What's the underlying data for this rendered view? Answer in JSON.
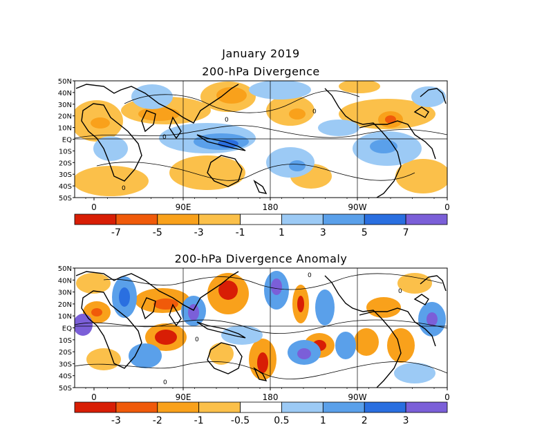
{
  "header": {
    "month": "January 2019",
    "panel1_title": "200-hPa Divergence",
    "panel2_title": "200-hPa Divergence Anomaly"
  },
  "axes": {
    "lat_labels": [
      "50N",
      "40N",
      "30N",
      "20N",
      "10N",
      "EQ",
      "10S",
      "20S",
      "30S",
      "40S",
      "50S"
    ],
    "lon_labels": [
      "0",
      "90E",
      "180",
      "90W",
      "0"
    ]
  },
  "colorbar1": {
    "labels": [
      "-7",
      "-5",
      "-3",
      "-1",
      "1",
      "3",
      "5",
      "7"
    ],
    "colors": [
      "#d81e05",
      "#f05a0a",
      "#f9a11b",
      "#fbc04a",
      "#ffffff",
      "#9ccaf5",
      "#5aa0ea",
      "#2a6fe0",
      "#7b5fd8"
    ]
  },
  "colorbar2": {
    "labels": [
      "-3",
      "-2",
      "-1",
      "-0.5",
      "0.5",
      "1",
      "2",
      "3"
    ],
    "colors": [
      "#d81e05",
      "#f05a0a",
      "#f9a11b",
      "#fbc04a",
      "#ffffff",
      "#9ccaf5",
      "#5aa0ea",
      "#2a6fe0",
      "#7b5fd8"
    ]
  },
  "contour_labels": {
    "panel1": [
      "0",
      "0",
      "0",
      "0"
    ],
    "panel2": [
      "0",
      "0",
      "0",
      "0"
    ]
  },
  "colors": {
    "warm_strong": "#d81e05",
    "warm_mid": "#f05a0a",
    "warm": "#f9a11b",
    "warm_light": "#fbc04a",
    "cool_light": "#9ccaf5",
    "cool": "#5aa0ea",
    "cool_mid": "#2a6fe0",
    "cool_strong": "#7b5fd8"
  }
}
